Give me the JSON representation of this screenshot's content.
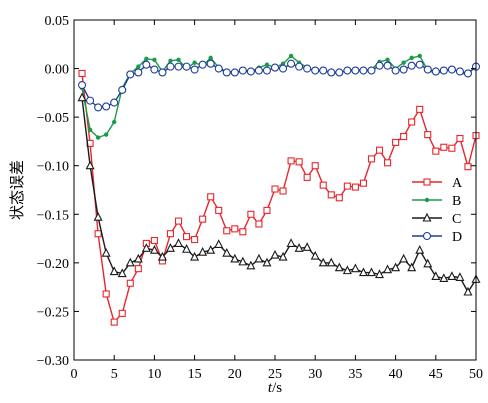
{
  "chart_data": {
    "type": "line",
    "title": "",
    "xlabel_var": "t",
    "xlabel_unit": "/s",
    "ylabel": "状态误差",
    "xlim": [
      0,
      50
    ],
    "ylim": [
      -0.3,
      0.05
    ],
    "xticks": [
      0,
      5,
      10,
      15,
      20,
      25,
      30,
      35,
      40,
      45,
      50
    ],
    "yticks": [
      0.05,
      0.0,
      -0.05,
      -0.1,
      -0.15,
      -0.2,
      -0.25,
      -0.3
    ],
    "ytick_labels": [
      "0.05",
      "0.00",
      "−0.05",
      "−0.10",
      "−0.15",
      "−0.20",
      "−0.25",
      "−0.30"
    ],
    "grid": false,
    "legend_position": "right",
    "x": [
      1,
      2,
      3,
      4,
      5,
      6,
      7,
      8,
      9,
      10,
      11,
      12,
      13,
      14,
      15,
      16,
      17,
      18,
      19,
      20,
      21,
      22,
      23,
      24,
      25,
      26,
      27,
      28,
      29,
      30,
      31,
      32,
      33,
      34,
      35,
      36,
      37,
      38,
      39,
      40,
      41,
      42,
      43,
      44,
      45,
      46,
      47,
      48,
      49,
      50
    ],
    "series": [
      {
        "name": "A",
        "color": "#e8262b",
        "marker": "square",
        "values": [
          -0.005,
          -0.077,
          -0.17,
          -0.232,
          -0.261,
          -0.252,
          -0.221,
          -0.206,
          -0.18,
          -0.177,
          -0.198,
          -0.17,
          -0.157,
          -0.173,
          -0.176,
          -0.155,
          -0.132,
          -0.146,
          -0.167,
          -0.165,
          -0.168,
          -0.15,
          -0.16,
          -0.146,
          -0.124,
          -0.126,
          -0.095,
          -0.096,
          -0.112,
          -0.1,
          -0.12,
          -0.13,
          -0.133,
          -0.121,
          -0.122,
          -0.118,
          -0.093,
          -0.084,
          -0.097,
          -0.076,
          -0.07,
          -0.055,
          -0.042,
          -0.068,
          -0.085,
          -0.081,
          -0.082,
          -0.072,
          -0.101,
          -0.069
        ]
      },
      {
        "name": "B",
        "color": "#1c9a48",
        "marker": "dot",
        "values": [
          -0.02,
          -0.063,
          -0.071,
          -0.068,
          -0.055,
          -0.02,
          -0.005,
          0.002,
          0.01,
          0.009,
          -0.003,
          0.008,
          0.009,
          0.0,
          0.006,
          0.003,
          0.011,
          0.001,
          -0.003,
          -0.004,
          -0.003,
          -0.003,
          0.001,
          0.004,
          0.001,
          0.005,
          0.013,
          0.006,
          0.001,
          -0.003,
          -0.002,
          -0.005,
          -0.004,
          -0.002,
          -0.001,
          -0.002,
          -0.001,
          0.007,
          0.009,
          0.0,
          0.006,
          0.011,
          0.013,
          -0.002,
          -0.005,
          -0.003,
          0.0,
          -0.004,
          -0.007,
          0.004
        ]
      },
      {
        "name": "C",
        "color": "#1a1a1a",
        "marker": "triangle",
        "values": [
          -0.03,
          -0.1,
          -0.153,
          -0.19,
          -0.209,
          -0.211,
          -0.2,
          -0.196,
          -0.185,
          -0.187,
          -0.194,
          -0.185,
          -0.18,
          -0.186,
          -0.194,
          -0.189,
          -0.187,
          -0.181,
          -0.19,
          -0.196,
          -0.199,
          -0.203,
          -0.196,
          -0.2,
          -0.192,
          -0.194,
          -0.18,
          -0.185,
          -0.184,
          -0.193,
          -0.2,
          -0.2,
          -0.205,
          -0.208,
          -0.206,
          -0.21,
          -0.21,
          -0.212,
          -0.207,
          -0.205,
          -0.196,
          -0.205,
          -0.187,
          -0.201,
          -0.214,
          -0.216,
          -0.214,
          -0.215,
          -0.23,
          -0.217
        ]
      },
      {
        "name": "D",
        "color": "#1f3d99",
        "marker": "circle",
        "values": [
          -0.017,
          -0.033,
          -0.04,
          -0.039,
          -0.035,
          -0.022,
          -0.006,
          -0.004,
          0.004,
          -0.001,
          -0.004,
          0.002,
          0.002,
          0.002,
          -0.001,
          0.004,
          0.005,
          0.0,
          -0.004,
          -0.004,
          -0.002,
          -0.003,
          -0.002,
          -0.002,
          0.001,
          0.0,
          0.005,
          0.002,
          0.0,
          -0.002,
          -0.002,
          -0.004,
          -0.004,
          -0.002,
          -0.002,
          -0.002,
          -0.002,
          0.003,
          0.003,
          -0.002,
          -0.001,
          0.003,
          0.004,
          -0.001,
          -0.003,
          -0.002,
          -0.001,
          -0.003,
          -0.005,
          0.002
        ]
      }
    ]
  }
}
